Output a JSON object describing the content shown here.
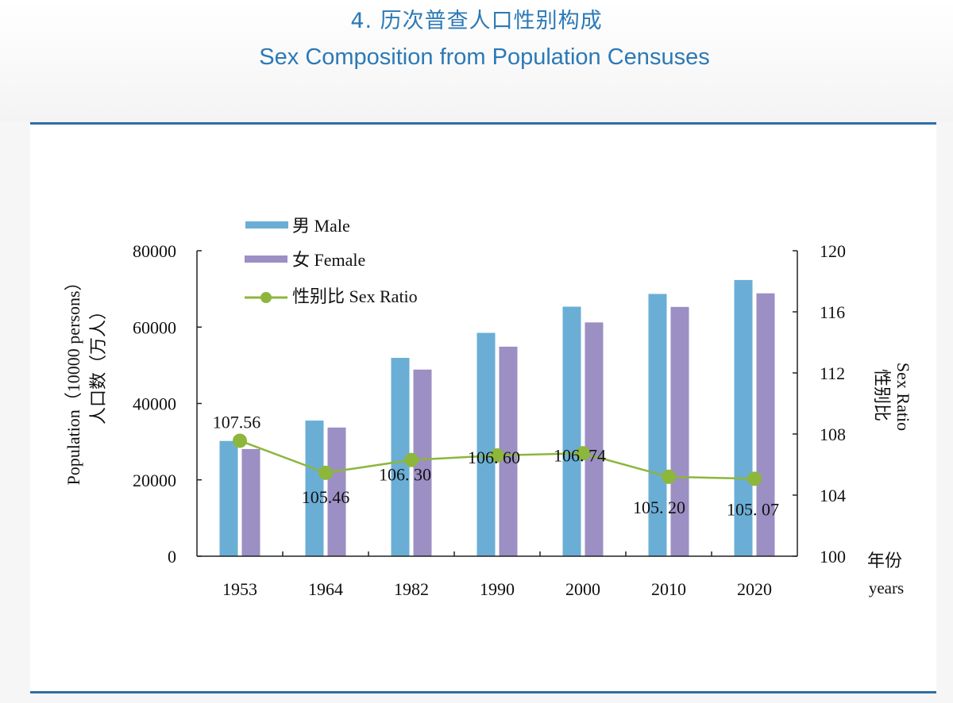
{
  "header": {
    "title_cn": "4. 历次普查人口性别构成",
    "title_en": "Sex Composition from Population Censuses"
  },
  "colors": {
    "title": "#2b79b7",
    "frame_line": "#2e6fa8",
    "male": "#6aaed6",
    "female": "#9b8fc3",
    "sex_ratio": "#8db63c"
  },
  "chart_data": {
    "type": "bar",
    "title": "Sex Composition from Population Censuses",
    "categories": [
      "1953",
      "1964",
      "1982",
      "1990",
      "2000",
      "2010",
      "2020"
    ],
    "series": [
      {
        "name": "男 Male",
        "type": "bar",
        "axis": "left",
        "values": [
          30190,
          35517,
          51944,
          58495,
          65355,
          68685,
          72334
        ]
      },
      {
        "name": "女 Female",
        "type": "bar",
        "axis": "left",
        "values": [
          28070,
          33701,
          48874,
          54873,
          61228,
          65287,
          68844
        ]
      },
      {
        "name": "性别比 Sex Ratio",
        "type": "line",
        "axis": "right",
        "values": [
          107.56,
          105.46,
          106.3,
          106.6,
          106.74,
          105.2,
          105.07
        ],
        "labels": [
          "107.56",
          "105.46",
          "106. 30",
          "106. 60",
          "106. 74",
          "105. 20",
          "105. 07"
        ]
      }
    ],
    "y_left": {
      "label_en": "Population（10000 persons）",
      "label_cn": "人口数（万人）",
      "ylim": [
        0,
        80000
      ],
      "ticks": [
        "0",
        "20000",
        "40000",
        "60000",
        "80000"
      ]
    },
    "y_right": {
      "label_en": "Sex Ratio",
      "label_cn": "性别比",
      "ylim": [
        100,
        120
      ],
      "ticks": [
        "100",
        "104",
        "108",
        "112",
        "116",
        "120"
      ]
    },
    "x_axis": {
      "label_cn": "年份",
      "label_en": "years"
    },
    "legend": {
      "placement": "top-left",
      "entries": [
        "男 Male",
        "女 Female",
        "性别比 Sex Ratio"
      ]
    },
    "grid": false
  }
}
